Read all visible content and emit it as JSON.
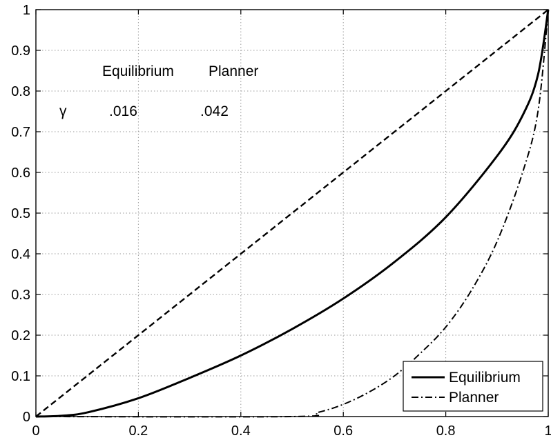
{
  "chart_data": {
    "type": "line",
    "title": "",
    "xlabel": "",
    "ylabel": "",
    "xlim": [
      0,
      1
    ],
    "ylim": [
      0,
      1
    ],
    "xticks": [
      "0",
      "0.2",
      "0.4",
      "0.6",
      "0.8",
      "1"
    ],
    "yticks": [
      "0",
      "0.1",
      "0.2",
      "0.3",
      "0.4",
      "0.5",
      "0.6",
      "0.7",
      "0.8",
      "0.9",
      "1"
    ],
    "grid": true,
    "legend_position": "bottom-right",
    "series": [
      {
        "name": "",
        "style": "dashed",
        "x": [
          0,
          1
        ],
        "y": [
          0,
          1
        ]
      },
      {
        "name": "Equilibrium",
        "style": "solid",
        "x": [
          0,
          0.05,
          0.1,
          0.2,
          0.3,
          0.4,
          0.5,
          0.6,
          0.7,
          0.8,
          0.9,
          0.95,
          0.98,
          1.0
        ],
        "y": [
          0,
          0.002,
          0.01,
          0.045,
          0.095,
          0.15,
          0.215,
          0.29,
          0.38,
          0.49,
          0.64,
          0.74,
          0.84,
          1.0
        ]
      },
      {
        "name": "Planner",
        "style": "dash-dot",
        "x": [
          0,
          0.5,
          0.55,
          0.6,
          0.65,
          0.7,
          0.75,
          0.8,
          0.85,
          0.9,
          0.95,
          0.98,
          1.0
        ],
        "y": [
          0,
          0,
          0.01,
          0.03,
          0.06,
          0.1,
          0.155,
          0.22,
          0.31,
          0.43,
          0.6,
          0.75,
          1.0
        ]
      }
    ],
    "annotations": {
      "header_equilibrium": "Equilibrium",
      "header_planner": "Planner",
      "row_label": "γ",
      "value_equilibrium": ".016",
      "value_planner": ".042"
    },
    "legend": [
      "Equilibrium",
      "Planner"
    ]
  }
}
